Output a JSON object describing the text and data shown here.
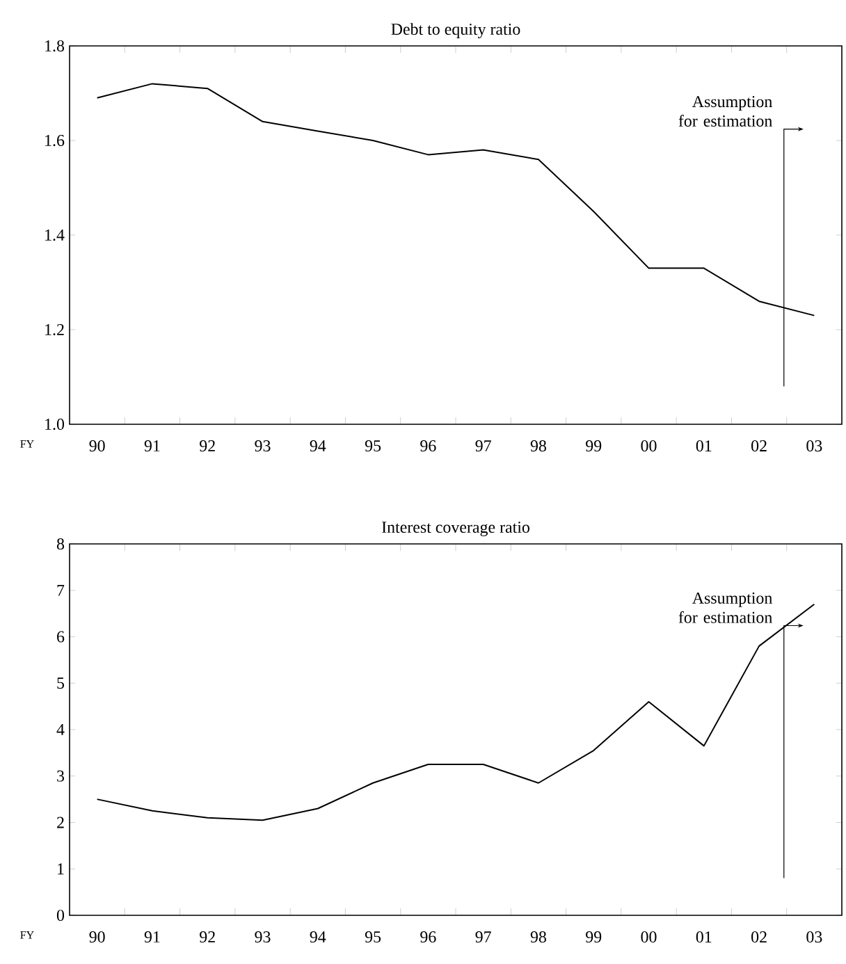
{
  "chart_data": [
    {
      "type": "line",
      "title": "Debt to equity ratio",
      "xlabel": "FY",
      "categories": [
        "90",
        "91",
        "92",
        "93",
        "94",
        "95",
        "96",
        "97",
        "98",
        "99",
        "00",
        "01",
        "02",
        "03"
      ],
      "values": [
        1.69,
        1.72,
        1.71,
        1.64,
        1.62,
        1.6,
        1.57,
        1.58,
        1.56,
        1.45,
        1.33,
        1.33,
        1.26,
        1.23
      ],
      "color": "#000000",
      "ylim": [
        1.0,
        1.8
      ],
      "yticks": [
        {
          "value": 1.0,
          "label": "1.0"
        },
        1.2,
        1.4,
        1.6,
        1.8
      ],
      "annotations": [
        "Assumption for estimation"
      ]
    },
    {
      "type": "line",
      "title": "Interest coverage ratio",
      "xlabel": "FY",
      "categories": [
        "90",
        "91",
        "92",
        "93",
        "94",
        "95",
        "96",
        "97",
        "98",
        "99",
        "00",
        "01",
        "02",
        "03"
      ],
      "values": [
        2.5,
        2.25,
        2.1,
        2.05,
        2.3,
        2.85,
        3.25,
        3.25,
        2.85,
        3.55,
        4.6,
        3.65,
        5.8,
        6.7
      ],
      "color": "#000000",
      "ylim": [
        0,
        8
      ],
      "yticks": [
        0,
        1,
        2,
        3,
        4,
        5,
        6,
        7,
        8
      ],
      "annotations": [
        "Assumption for estimation"
      ]
    }
  ]
}
